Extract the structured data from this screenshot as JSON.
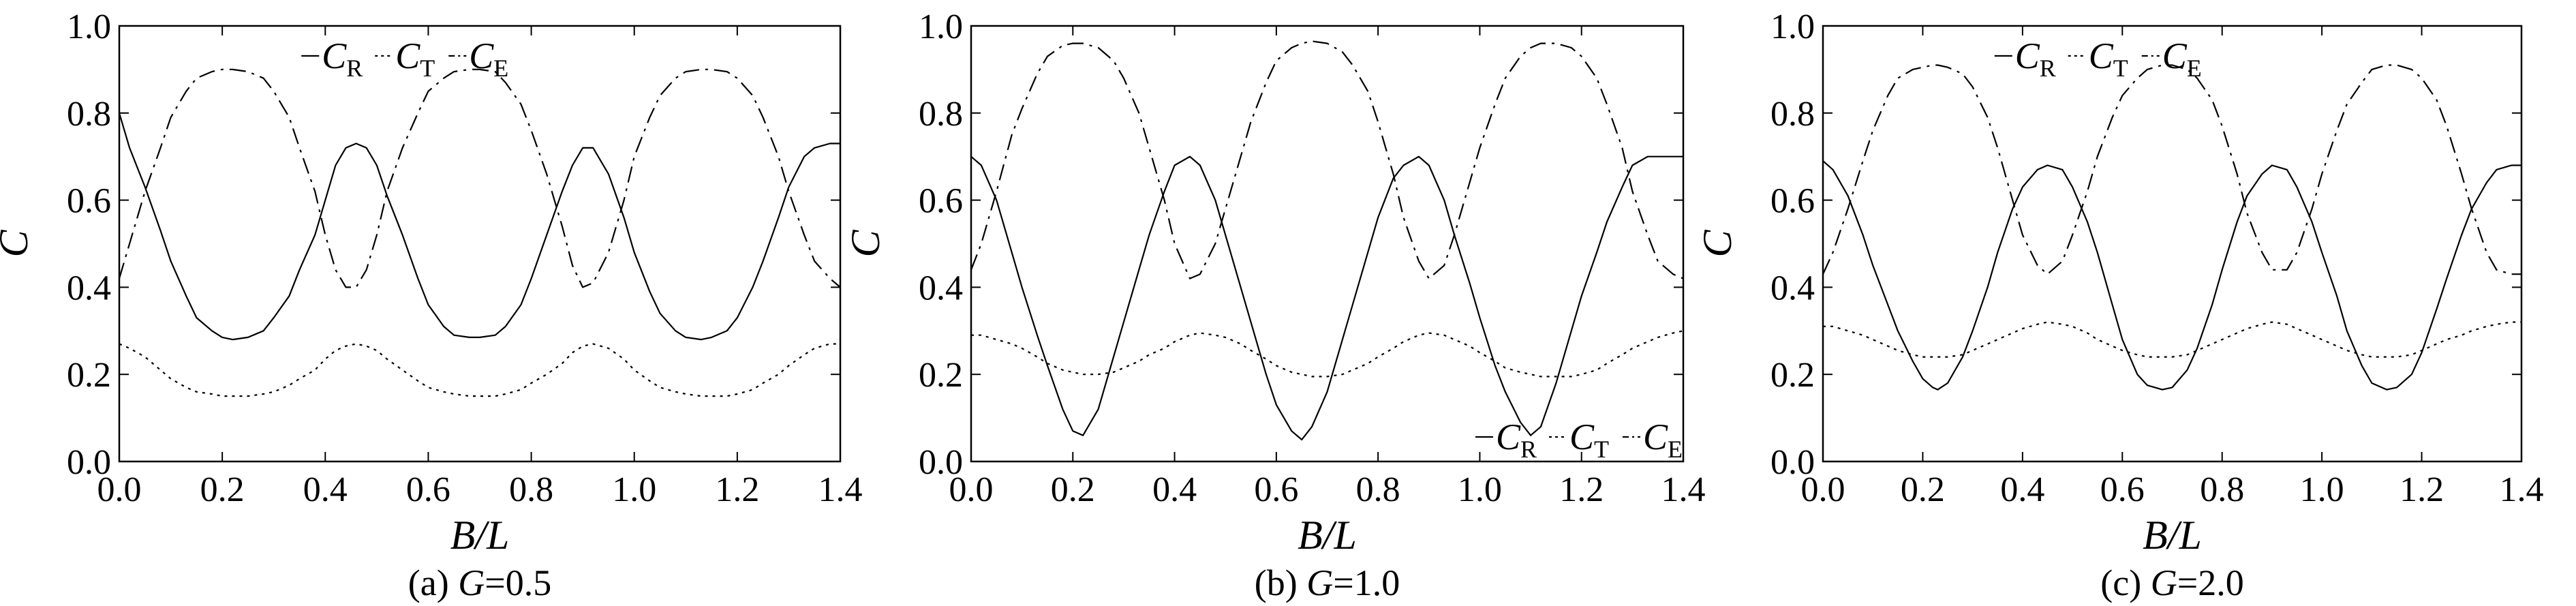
{
  "chart_data": [
    {
      "type": "line",
      "caption": {
        "prefix": "(a) ",
        "var": "G",
        "value": "=0.5"
      },
      "xlabel": "B/L",
      "ylabel": "C",
      "xlim": [
        0.0,
        1.4
      ],
      "ylim": [
        0.0,
        1.0
      ],
      "xticks": [
        "0.0",
        "0.2",
        "0.4",
        "0.6",
        "0.8",
        "1.0",
        "1.2",
        "1.4"
      ],
      "yticks": [
        "0.0",
        "0.2",
        "0.4",
        "0.6",
        "0.8",
        "1.0"
      ],
      "legend": {
        "placement": "top-center",
        "entries": [
          "C_R",
          "C_T",
          "C_E"
        ]
      },
      "x": [
        0.0,
        0.02,
        0.05,
        0.08,
        0.1,
        0.13,
        0.15,
        0.18,
        0.2,
        0.22,
        0.25,
        0.28,
        0.3,
        0.33,
        0.35,
        0.38,
        0.4,
        0.42,
        0.44,
        0.46,
        0.48,
        0.5,
        0.52,
        0.55,
        0.58,
        0.6,
        0.63,
        0.65,
        0.68,
        0.7,
        0.73,
        0.75,
        0.78,
        0.8,
        0.83,
        0.86,
        0.88,
        0.9,
        0.92,
        0.95,
        0.98,
        1.0,
        1.03,
        1.05,
        1.08,
        1.1,
        1.13,
        1.15,
        1.18,
        1.2,
        1.23,
        1.25,
        1.28,
        1.3,
        1.33,
        1.35,
        1.38,
        1.4
      ],
      "series": [
        {
          "name": "C_R",
          "style": "solid",
          "values": [
            0.8,
            0.72,
            0.63,
            0.53,
            0.46,
            0.38,
            0.33,
            0.3,
            0.285,
            0.28,
            0.285,
            0.3,
            0.33,
            0.38,
            0.44,
            0.52,
            0.6,
            0.68,
            0.72,
            0.73,
            0.72,
            0.68,
            0.61,
            0.52,
            0.42,
            0.36,
            0.31,
            0.29,
            0.285,
            0.285,
            0.29,
            0.31,
            0.36,
            0.42,
            0.52,
            0.62,
            0.68,
            0.72,
            0.72,
            0.66,
            0.56,
            0.48,
            0.39,
            0.34,
            0.3,
            0.285,
            0.28,
            0.285,
            0.3,
            0.33,
            0.4,
            0.46,
            0.56,
            0.63,
            0.7,
            0.72,
            0.73,
            0.73
          ]
        },
        {
          "name": "C_T",
          "style": "dotted",
          "values": [
            0.27,
            0.26,
            0.24,
            0.21,
            0.19,
            0.17,
            0.16,
            0.155,
            0.15,
            0.15,
            0.15,
            0.155,
            0.16,
            0.175,
            0.19,
            0.21,
            0.235,
            0.255,
            0.265,
            0.27,
            0.265,
            0.255,
            0.235,
            0.21,
            0.185,
            0.17,
            0.16,
            0.155,
            0.15,
            0.15,
            0.15,
            0.155,
            0.165,
            0.18,
            0.2,
            0.225,
            0.25,
            0.265,
            0.27,
            0.26,
            0.235,
            0.21,
            0.185,
            0.17,
            0.16,
            0.155,
            0.15,
            0.15,
            0.15,
            0.155,
            0.165,
            0.18,
            0.2,
            0.22,
            0.245,
            0.26,
            0.27,
            0.27
          ]
        },
        {
          "name": "C_E",
          "style": "dashdot",
          "values": [
            0.42,
            0.5,
            0.62,
            0.72,
            0.79,
            0.85,
            0.88,
            0.895,
            0.9,
            0.9,
            0.895,
            0.88,
            0.85,
            0.79,
            0.72,
            0.62,
            0.52,
            0.44,
            0.4,
            0.4,
            0.44,
            0.52,
            0.62,
            0.72,
            0.8,
            0.85,
            0.88,
            0.895,
            0.9,
            0.9,
            0.895,
            0.87,
            0.82,
            0.76,
            0.66,
            0.54,
            0.45,
            0.4,
            0.41,
            0.48,
            0.6,
            0.7,
            0.79,
            0.84,
            0.88,
            0.895,
            0.9,
            0.9,
            0.895,
            0.88,
            0.84,
            0.79,
            0.7,
            0.62,
            0.52,
            0.46,
            0.42,
            0.4
          ]
        }
      ]
    },
    {
      "type": "line",
      "caption": {
        "prefix": "(b) ",
        "var": "G",
        "value": "=1.0"
      },
      "xlabel": "B/L",
      "ylabel": "C",
      "xlim": [
        0.0,
        1.4
      ],
      "ylim": [
        0.0,
        1.0
      ],
      "xticks": [
        "0.0",
        "0.2",
        "0.4",
        "0.6",
        "0.8",
        "1.0",
        "1.2",
        "1.4"
      ],
      "yticks": [
        "0.0",
        "0.2",
        "0.4",
        "0.6",
        "0.8",
        "1.0"
      ],
      "legend": {
        "placement": "bottom-right",
        "entries": [
          "C_R",
          "C_T",
          "C_E"
        ]
      },
      "x": [
        0.0,
        0.02,
        0.05,
        0.08,
        0.1,
        0.13,
        0.15,
        0.18,
        0.2,
        0.22,
        0.25,
        0.28,
        0.3,
        0.33,
        0.35,
        0.38,
        0.4,
        0.43,
        0.45,
        0.48,
        0.5,
        0.53,
        0.55,
        0.58,
        0.6,
        0.63,
        0.65,
        0.67,
        0.7,
        0.73,
        0.75,
        0.78,
        0.8,
        0.83,
        0.85,
        0.88,
        0.9,
        0.93,
        0.95,
        0.98,
        1.0,
        1.03,
        1.05,
        1.08,
        1.1,
        1.12,
        1.15,
        1.18,
        1.2,
        1.23,
        1.25,
        1.28,
        1.3,
        1.33,
        1.35,
        1.38,
        1.4
      ],
      "series": [
        {
          "name": "C_R",
          "style": "solid",
          "values": [
            0.7,
            0.68,
            0.6,
            0.48,
            0.4,
            0.29,
            0.22,
            0.12,
            0.07,
            0.06,
            0.12,
            0.24,
            0.32,
            0.44,
            0.52,
            0.62,
            0.68,
            0.7,
            0.68,
            0.6,
            0.52,
            0.4,
            0.32,
            0.2,
            0.13,
            0.07,
            0.05,
            0.08,
            0.16,
            0.28,
            0.36,
            0.48,
            0.56,
            0.65,
            0.68,
            0.7,
            0.68,
            0.6,
            0.52,
            0.41,
            0.33,
            0.22,
            0.16,
            0.09,
            0.06,
            0.08,
            0.18,
            0.3,
            0.38,
            0.48,
            0.55,
            0.63,
            0.68,
            0.7,
            0.7,
            0.7,
            0.7
          ]
        },
        {
          "name": "C_T",
          "style": "dotted",
          "values": [
            0.29,
            0.29,
            0.28,
            0.27,
            0.26,
            0.24,
            0.225,
            0.21,
            0.205,
            0.2,
            0.2,
            0.205,
            0.215,
            0.23,
            0.245,
            0.26,
            0.275,
            0.29,
            0.295,
            0.29,
            0.285,
            0.27,
            0.255,
            0.235,
            0.22,
            0.205,
            0.2,
            0.195,
            0.195,
            0.2,
            0.21,
            0.225,
            0.24,
            0.26,
            0.275,
            0.29,
            0.295,
            0.29,
            0.28,
            0.265,
            0.25,
            0.23,
            0.215,
            0.205,
            0.2,
            0.195,
            0.195,
            0.195,
            0.2,
            0.21,
            0.225,
            0.245,
            0.26,
            0.275,
            0.285,
            0.295,
            0.3
          ]
        },
        {
          "name": "C_E",
          "style": "dashdot",
          "values": [
            0.44,
            0.5,
            0.62,
            0.75,
            0.81,
            0.89,
            0.93,
            0.955,
            0.96,
            0.96,
            0.95,
            0.92,
            0.88,
            0.8,
            0.72,
            0.6,
            0.5,
            0.42,
            0.43,
            0.5,
            0.58,
            0.7,
            0.78,
            0.87,
            0.92,
            0.95,
            0.96,
            0.965,
            0.96,
            0.94,
            0.91,
            0.85,
            0.78,
            0.66,
            0.56,
            0.46,
            0.42,
            0.45,
            0.52,
            0.64,
            0.72,
            0.82,
            0.88,
            0.93,
            0.95,
            0.96,
            0.96,
            0.95,
            0.93,
            0.88,
            0.82,
            0.72,
            0.62,
            0.52,
            0.46,
            0.43,
            0.42
          ]
        }
      ]
    },
    {
      "type": "line",
      "caption": {
        "prefix": "(c) ",
        "var": "G",
        "value": "=2.0"
      },
      "xlabel": "B/L",
      "ylabel": "C",
      "xlim": [
        0.0,
        1.4
      ],
      "ylim": [
        0.0,
        1.0
      ],
      "xticks": [
        "0.0",
        "0.2",
        "0.4",
        "0.6",
        "0.8",
        "1.0",
        "1.2",
        "1.4"
      ],
      "yticks": [
        "0.0",
        "0.2",
        "0.4",
        "0.6",
        "0.8",
        "1.0"
      ],
      "legend": {
        "placement": "top-center",
        "entries": [
          "C_R",
          "C_T",
          "C_E"
        ]
      },
      "x": [
        0.0,
        0.02,
        0.05,
        0.08,
        0.1,
        0.13,
        0.15,
        0.18,
        0.2,
        0.22,
        0.23,
        0.25,
        0.28,
        0.3,
        0.33,
        0.35,
        0.38,
        0.4,
        0.43,
        0.45,
        0.48,
        0.5,
        0.53,
        0.55,
        0.58,
        0.6,
        0.63,
        0.65,
        0.68,
        0.7,
        0.73,
        0.75,
        0.78,
        0.8,
        0.83,
        0.85,
        0.88,
        0.9,
        0.93,
        0.95,
        0.98,
        1.0,
        1.03,
        1.05,
        1.08,
        1.1,
        1.13,
        1.15,
        1.18,
        1.2,
        1.23,
        1.25,
        1.28,
        1.3,
        1.33,
        1.35,
        1.38,
        1.4
      ],
      "series": [
        {
          "name": "C_R",
          "style": "solid",
          "values": [
            0.69,
            0.67,
            0.61,
            0.52,
            0.45,
            0.36,
            0.3,
            0.23,
            0.19,
            0.17,
            0.165,
            0.18,
            0.24,
            0.3,
            0.4,
            0.48,
            0.58,
            0.63,
            0.67,
            0.68,
            0.67,
            0.63,
            0.55,
            0.48,
            0.36,
            0.28,
            0.2,
            0.175,
            0.165,
            0.17,
            0.21,
            0.26,
            0.36,
            0.44,
            0.55,
            0.61,
            0.66,
            0.68,
            0.67,
            0.63,
            0.55,
            0.48,
            0.38,
            0.3,
            0.22,
            0.18,
            0.165,
            0.17,
            0.2,
            0.25,
            0.35,
            0.42,
            0.52,
            0.58,
            0.64,
            0.67,
            0.68,
            0.68
          ]
        },
        {
          "name": "C_T",
          "style": "dotted",
          "values": [
            0.31,
            0.31,
            0.3,
            0.29,
            0.28,
            0.265,
            0.255,
            0.245,
            0.24,
            0.24,
            0.24,
            0.24,
            0.245,
            0.255,
            0.27,
            0.28,
            0.295,
            0.305,
            0.315,
            0.32,
            0.315,
            0.31,
            0.295,
            0.28,
            0.265,
            0.255,
            0.245,
            0.24,
            0.24,
            0.24,
            0.245,
            0.255,
            0.27,
            0.28,
            0.295,
            0.305,
            0.315,
            0.32,
            0.315,
            0.305,
            0.29,
            0.28,
            0.265,
            0.255,
            0.245,
            0.24,
            0.24,
            0.24,
            0.245,
            0.255,
            0.27,
            0.28,
            0.29,
            0.3,
            0.31,
            0.315,
            0.32,
            0.32
          ]
        },
        {
          "name": "C_E",
          "style": "dashdot",
          "values": [
            0.43,
            0.48,
            0.58,
            0.69,
            0.76,
            0.84,
            0.88,
            0.9,
            0.905,
            0.91,
            0.91,
            0.905,
            0.89,
            0.86,
            0.79,
            0.72,
            0.6,
            0.52,
            0.45,
            0.43,
            0.46,
            0.52,
            0.62,
            0.7,
            0.79,
            0.84,
            0.88,
            0.9,
            0.91,
            0.91,
            0.9,
            0.88,
            0.83,
            0.77,
            0.66,
            0.57,
            0.48,
            0.44,
            0.44,
            0.48,
            0.58,
            0.66,
            0.76,
            0.82,
            0.87,
            0.9,
            0.91,
            0.91,
            0.9,
            0.88,
            0.83,
            0.77,
            0.66,
            0.58,
            0.48,
            0.44,
            0.43,
            0.43
          ]
        }
      ]
    }
  ]
}
